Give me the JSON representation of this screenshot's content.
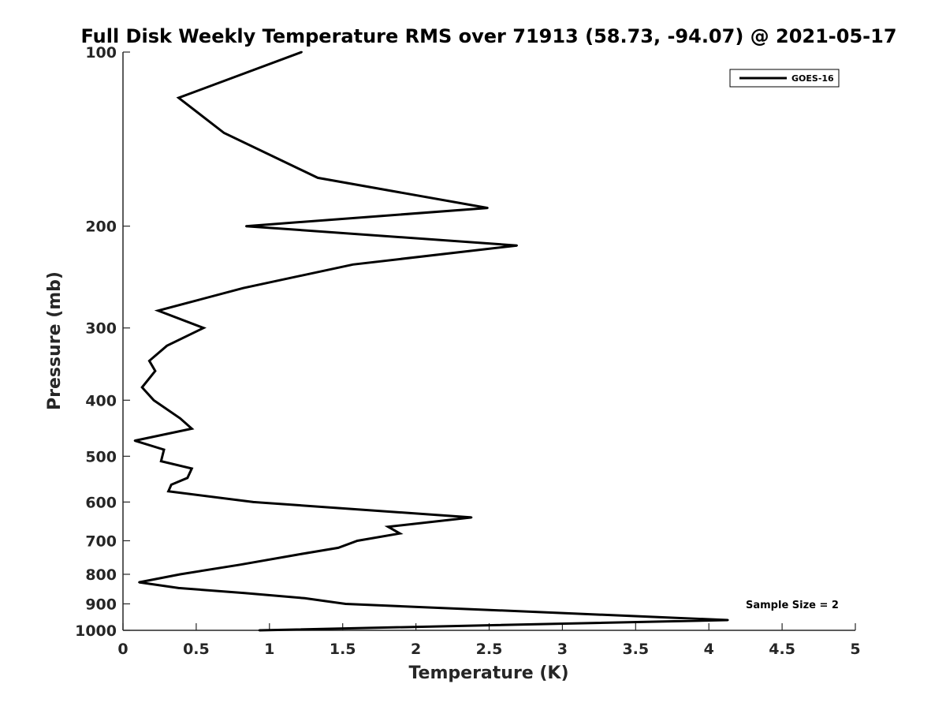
{
  "chart_data": {
    "type": "line",
    "title": "Full Disk Weekly Temperature RMS over 71913 (58.73, -94.07) @ 2021-05-17",
    "xlabel": "Temperature (K)",
    "ylabel": "Pressure (mb)",
    "xlim": [
      0,
      5
    ],
    "ylim": [
      1000,
      100
    ],
    "yscale": "log",
    "xticks": [
      0,
      0.5,
      1,
      1.5,
      2,
      2.5,
      3,
      3.5,
      4,
      4.5,
      5
    ],
    "xtick_labels": [
      "0",
      "0.5",
      "1",
      "1.5",
      "2",
      "2.5",
      "3",
      "3.5",
      "4",
      "4.5",
      "5"
    ],
    "yticks": [
      100,
      200,
      300,
      400,
      500,
      600,
      700,
      800,
      900,
      1000
    ],
    "ytick_labels": [
      "100",
      "200",
      "300",
      "400",
      "500",
      "600",
      "700",
      "800",
      "900",
      "1000"
    ],
    "grid": false,
    "legend_position": "top-right",
    "annotation": "Sample Size = 2",
    "series": [
      {
        "name": "GOES-16",
        "color": "#000000",
        "points": [
          [
            1.22,
            100
          ],
          [
            0.38,
            120
          ],
          [
            0.69,
            138
          ],
          [
            1.33,
            165
          ],
          [
            2.49,
            186
          ],
          [
            0.84,
            200
          ],
          [
            2.69,
            216
          ],
          [
            1.57,
            233
          ],
          [
            0.82,
            256
          ],
          [
            0.24,
            280
          ],
          [
            0.55,
            300
          ],
          [
            0.3,
            322
          ],
          [
            0.18,
            342
          ],
          [
            0.22,
            356
          ],
          [
            0.13,
            380
          ],
          [
            0.21,
            400
          ],
          [
            0.39,
            430
          ],
          [
            0.47,
            448
          ],
          [
            0.08,
            470
          ],
          [
            0.28,
            487
          ],
          [
            0.26,
            510
          ],
          [
            0.47,
            525
          ],
          [
            0.44,
            545
          ],
          [
            0.33,
            560
          ],
          [
            0.31,
            575
          ],
          [
            0.89,
            600
          ],
          [
            2.38,
            638
          ],
          [
            1.81,
            662
          ],
          [
            1.89,
            680
          ],
          [
            1.6,
            700
          ],
          [
            1.47,
            720
          ],
          [
            1.19,
            740
          ],
          [
            0.8,
            770
          ],
          [
            0.39,
            800
          ],
          [
            0.11,
            826
          ],
          [
            0.38,
            845
          ],
          [
            0.83,
            862
          ],
          [
            1.24,
            880
          ],
          [
            1.52,
            900
          ],
          [
            4.13,
            960
          ],
          [
            0.93,
            1000
          ]
        ]
      }
    ]
  }
}
